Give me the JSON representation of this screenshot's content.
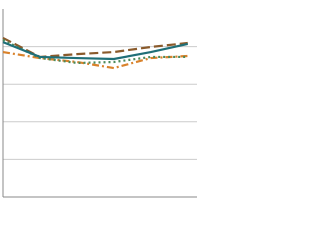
{
  "chart_data": {
    "type": "line",
    "x": [
      0,
      1,
      2,
      3,
      4,
      5
    ],
    "xlim": [
      0,
      5.25
    ],
    "ylim": [
      0,
      100
    ],
    "yticks": [
      0,
      20,
      40,
      60,
      80
    ],
    "grid": true,
    "series": [
      {
        "color": "#8a5a2b",
        "style": "dashed",
        "values": [
          84.6,
          74.5,
          76.0,
          77.1,
          79.8,
          81.9
        ]
      },
      {
        "color": "#d9822b",
        "style": "dashdot",
        "values": [
          77.1,
          73.9,
          71.8,
          68.6,
          73.9,
          75.0
        ]
      },
      {
        "color": "#4a8a5a",
        "style": "dotted",
        "values": [
          83.5,
          73.9,
          71.3,
          71.8,
          74.5,
          74.5
        ]
      },
      {
        "color": "#1f6f78",
        "style": "solid",
        "values": [
          82.4,
          74.5,
          73.9,
          73.4,
          77.1,
          81.4
        ]
      }
    ]
  }
}
